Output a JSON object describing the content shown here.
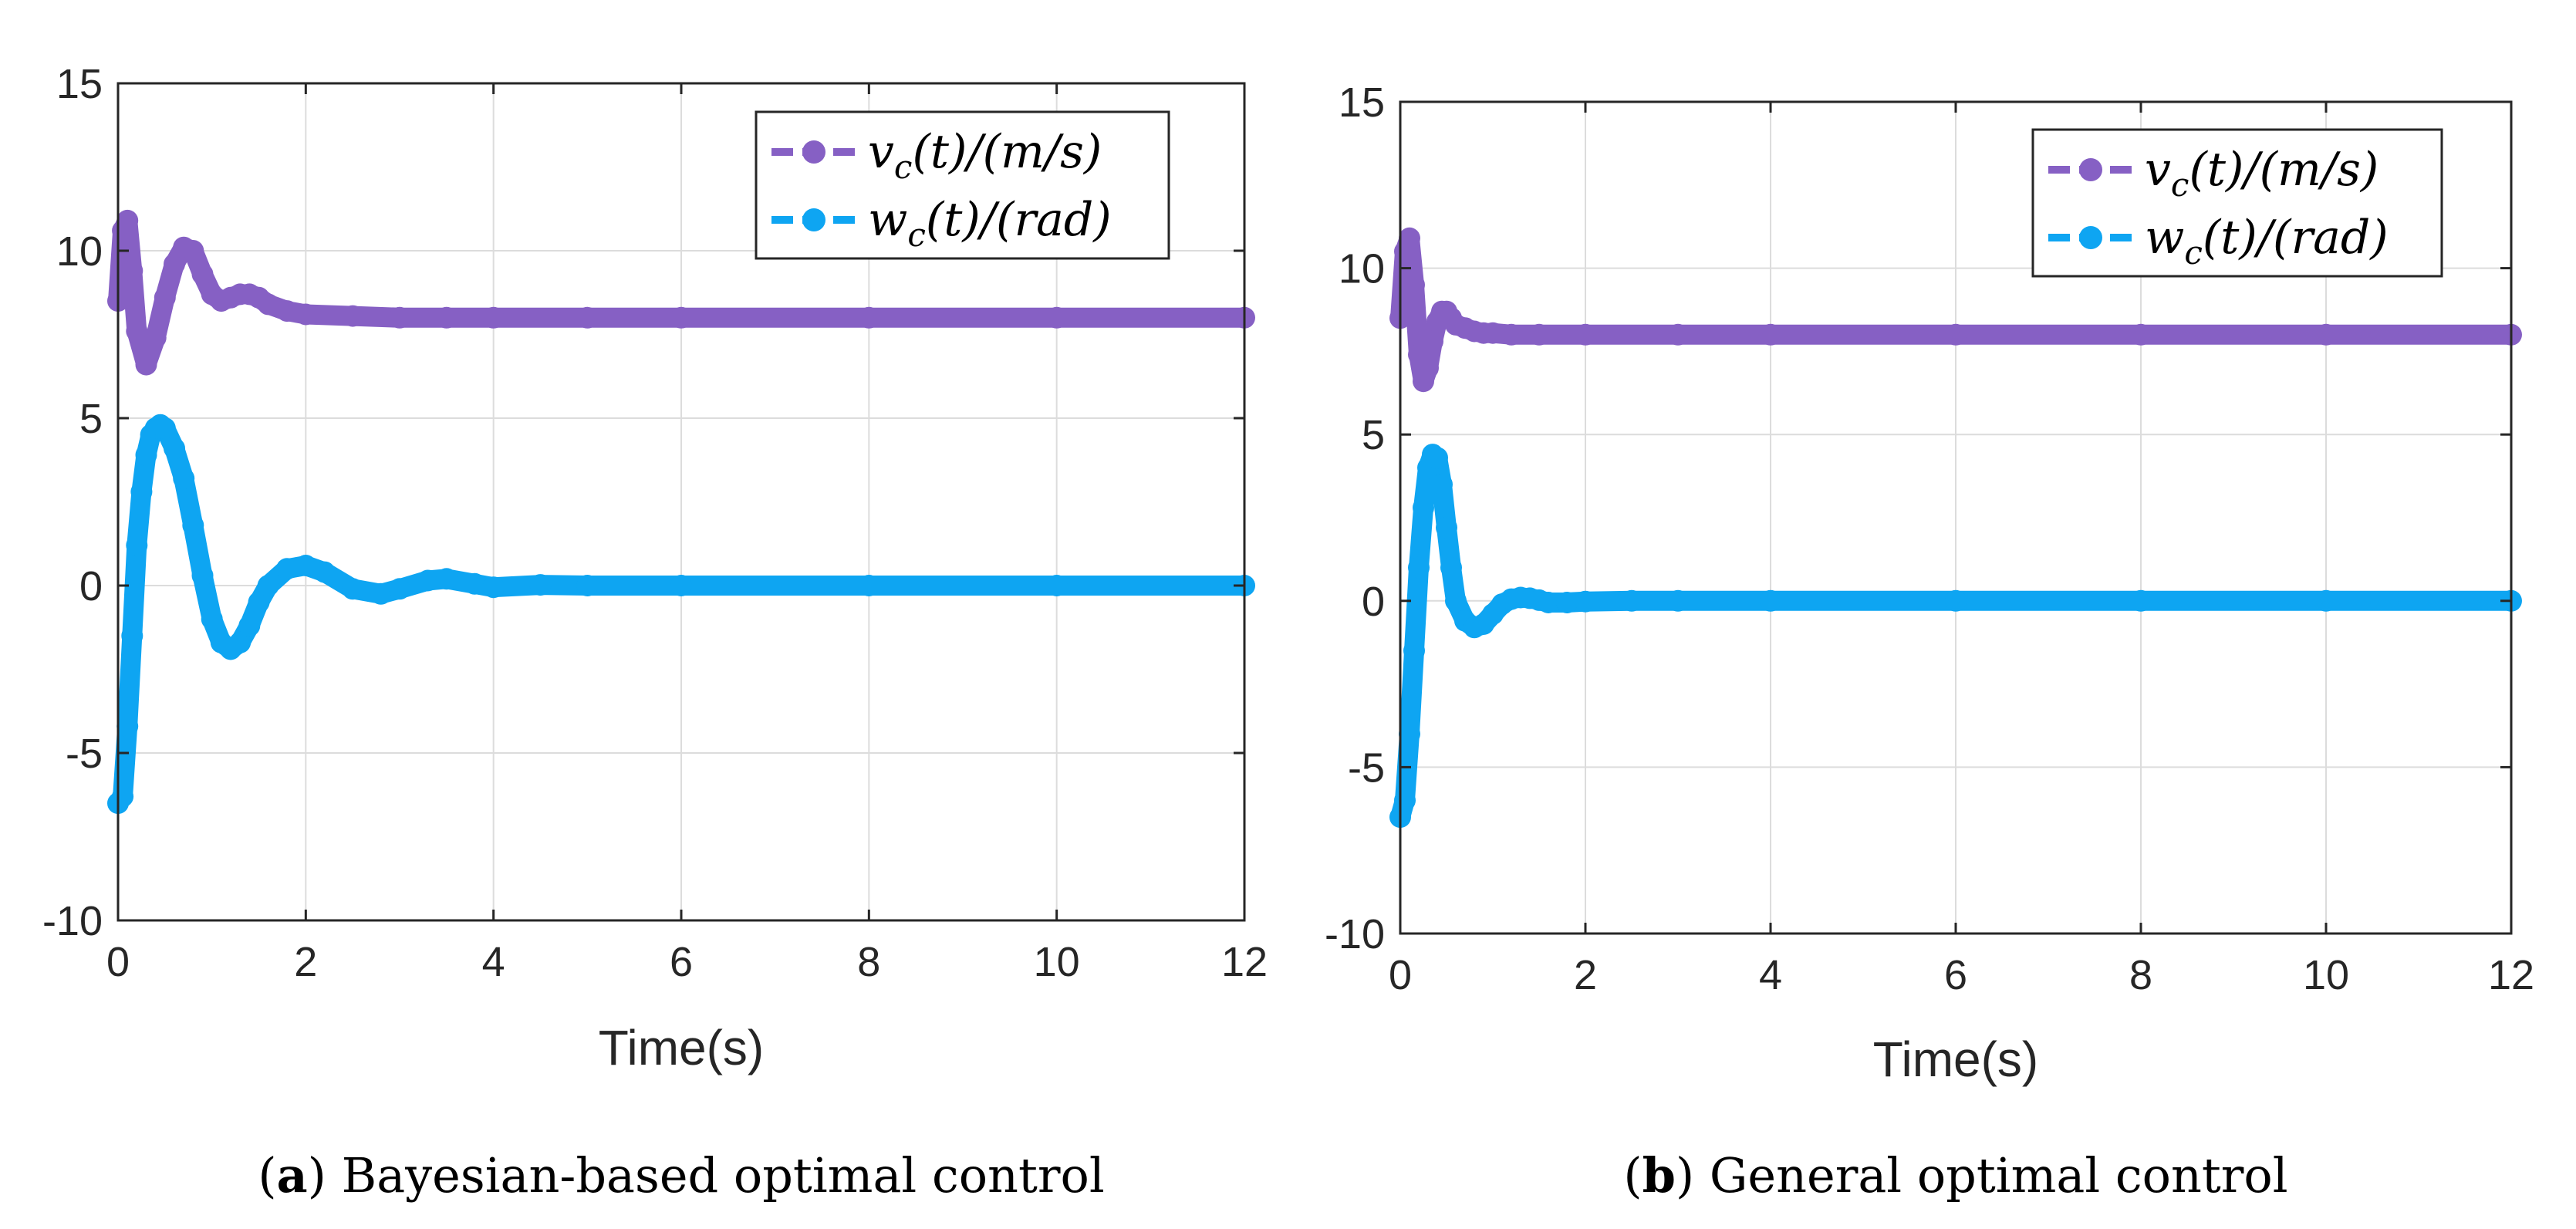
{
  "chart_data": [
    {
      "type": "line",
      "panel_letter": "a",
      "caption_open": "(",
      "caption_close": ")",
      "caption_text": " Bayesian-based optimal control",
      "xlabel": "Time(s)",
      "ylabel": "",
      "xlim": [
        0,
        12
      ],
      "ylim": [
        -10,
        15
      ],
      "xticks": [
        0,
        2,
        4,
        6,
        8,
        10,
        12
      ],
      "yticks": [
        -10,
        -5,
        0,
        5,
        10,
        15
      ],
      "xtick_labels": [
        "0",
        "2",
        "4",
        "6",
        "8",
        "10",
        "12"
      ],
      "ytick_labels": [
        "-10",
        "-5",
        "0",
        "5",
        "10",
        "15"
      ],
      "grid": true,
      "legend_position": "top-right",
      "series": [
        {
          "name": "v_c(t)/(m/s)",
          "legend_label": "v",
          "legend_sub": "c",
          "legend_rest": "(t)/(m/s)",
          "color": "#8660C4",
          "x": [
            0,
            0.05,
            0.1,
            0.15,
            0.2,
            0.3,
            0.4,
            0.5,
            0.6,
            0.7,
            0.8,
            0.9,
            1.0,
            1.1,
            1.2,
            1.3,
            1.4,
            1.5,
            1.6,
            1.8,
            2.0,
            2.5,
            3.0,
            3.5,
            4.0,
            5.0,
            6.0,
            8.0,
            10.0,
            12.0
          ],
          "y": [
            8.5,
            10.6,
            10.9,
            9.4,
            7.6,
            6.6,
            7.4,
            8.6,
            9.6,
            10.1,
            10.0,
            9.3,
            8.7,
            8.5,
            8.6,
            8.7,
            8.7,
            8.6,
            8.4,
            8.2,
            8.1,
            8.05,
            8.0,
            8.0,
            8.0,
            8.0,
            8.0,
            8.0,
            8.0,
            8.0
          ]
        },
        {
          "name": "w_c(t)/(rad)",
          "legend_label": "w",
          "legend_sub": "c",
          "legend_rest": "(t)/(rad)",
          "color": "#0EA5F2",
          "x": [
            0,
            0.05,
            0.1,
            0.15,
            0.2,
            0.25,
            0.3,
            0.35,
            0.4,
            0.45,
            0.5,
            0.6,
            0.7,
            0.8,
            0.9,
            1.0,
            1.1,
            1.2,
            1.3,
            1.4,
            1.5,
            1.6,
            1.8,
            2.0,
            2.2,
            2.5,
            2.8,
            3.0,
            3.3,
            3.5,
            3.8,
            4.0,
            4.5,
            5.0,
            6.0,
            8.0,
            10.0,
            12.0
          ],
          "y": [
            -6.5,
            -6.3,
            -4.2,
            -1.5,
            1.2,
            2.8,
            3.9,
            4.5,
            4.7,
            4.8,
            4.7,
            4.1,
            3.2,
            1.8,
            0.3,
            -1.0,
            -1.7,
            -1.9,
            -1.7,
            -1.2,
            -0.5,
            0.0,
            0.5,
            0.6,
            0.4,
            -0.1,
            -0.25,
            -0.1,
            0.15,
            0.2,
            0.05,
            -0.05,
            0.02,
            0.0,
            0.0,
            0.0,
            0.0,
            0.0
          ]
        }
      ]
    },
    {
      "type": "line",
      "panel_letter": "b",
      "caption_open": "(",
      "caption_close": ")",
      "caption_text": " General optimal control",
      "xlabel": "Time(s)",
      "ylabel": "",
      "xlim": [
        0,
        12
      ],
      "ylim": [
        -10,
        15
      ],
      "xticks": [
        0,
        2,
        4,
        6,
        8,
        10,
        12
      ],
      "yticks": [
        -10,
        -5,
        0,
        5,
        10,
        15
      ],
      "xtick_labels": [
        "0",
        "2",
        "4",
        "6",
        "8",
        "10",
        "12"
      ],
      "ytick_labels": [
        "-10",
        "-5",
        "0",
        "5",
        "10",
        "15"
      ],
      "grid": true,
      "legend_position": "top-right",
      "series": [
        {
          "name": "v_c(t)/(m/s)",
          "legend_label": "v",
          "legend_sub": "c",
          "legend_rest": "(t)/(m/s)",
          "color": "#8660C4",
          "x": [
            0,
            0.05,
            0.1,
            0.15,
            0.2,
            0.25,
            0.3,
            0.35,
            0.4,
            0.45,
            0.5,
            0.55,
            0.6,
            0.7,
            0.8,
            0.9,
            1.0,
            1.2,
            1.5,
            2.0,
            3.0,
            4.0,
            6.0,
            8.0,
            10.0,
            12.0
          ],
          "y": [
            8.5,
            10.5,
            10.9,
            9.5,
            7.4,
            6.6,
            7.0,
            7.8,
            8.4,
            8.7,
            8.7,
            8.5,
            8.3,
            8.2,
            8.1,
            8.05,
            8.05,
            8.0,
            8.0,
            8.0,
            8.0,
            8.0,
            8.0,
            8.0,
            8.0,
            8.0
          ]
        },
        {
          "name": "w_c(t)/(rad)",
          "legend_label": "w",
          "legend_sub": "c",
          "legend_rest": "(t)/(rad)",
          "color": "#0EA5F2",
          "x": [
            0,
            0.05,
            0.1,
            0.15,
            0.2,
            0.25,
            0.3,
            0.35,
            0.4,
            0.45,
            0.5,
            0.55,
            0.6,
            0.7,
            0.8,
            0.9,
            1.0,
            1.1,
            1.2,
            1.3,
            1.4,
            1.5,
            1.6,
            1.8,
            2.0,
            2.5,
            3.0,
            4.0,
            6.0,
            8.0,
            10.0,
            12.0
          ],
          "y": [
            -6.5,
            -6.0,
            -4.0,
            -1.5,
            1.0,
            2.8,
            4.0,
            4.4,
            4.3,
            3.5,
            2.2,
            1.0,
            0.0,
            -0.6,
            -0.8,
            -0.7,
            -0.4,
            -0.1,
            0.05,
            0.1,
            0.08,
            0.02,
            -0.05,
            -0.05,
            -0.02,
            0.0,
            0.0,
            0.0,
            0.0,
            0.0,
            0.0,
            0.0
          ]
        }
      ]
    }
  ]
}
